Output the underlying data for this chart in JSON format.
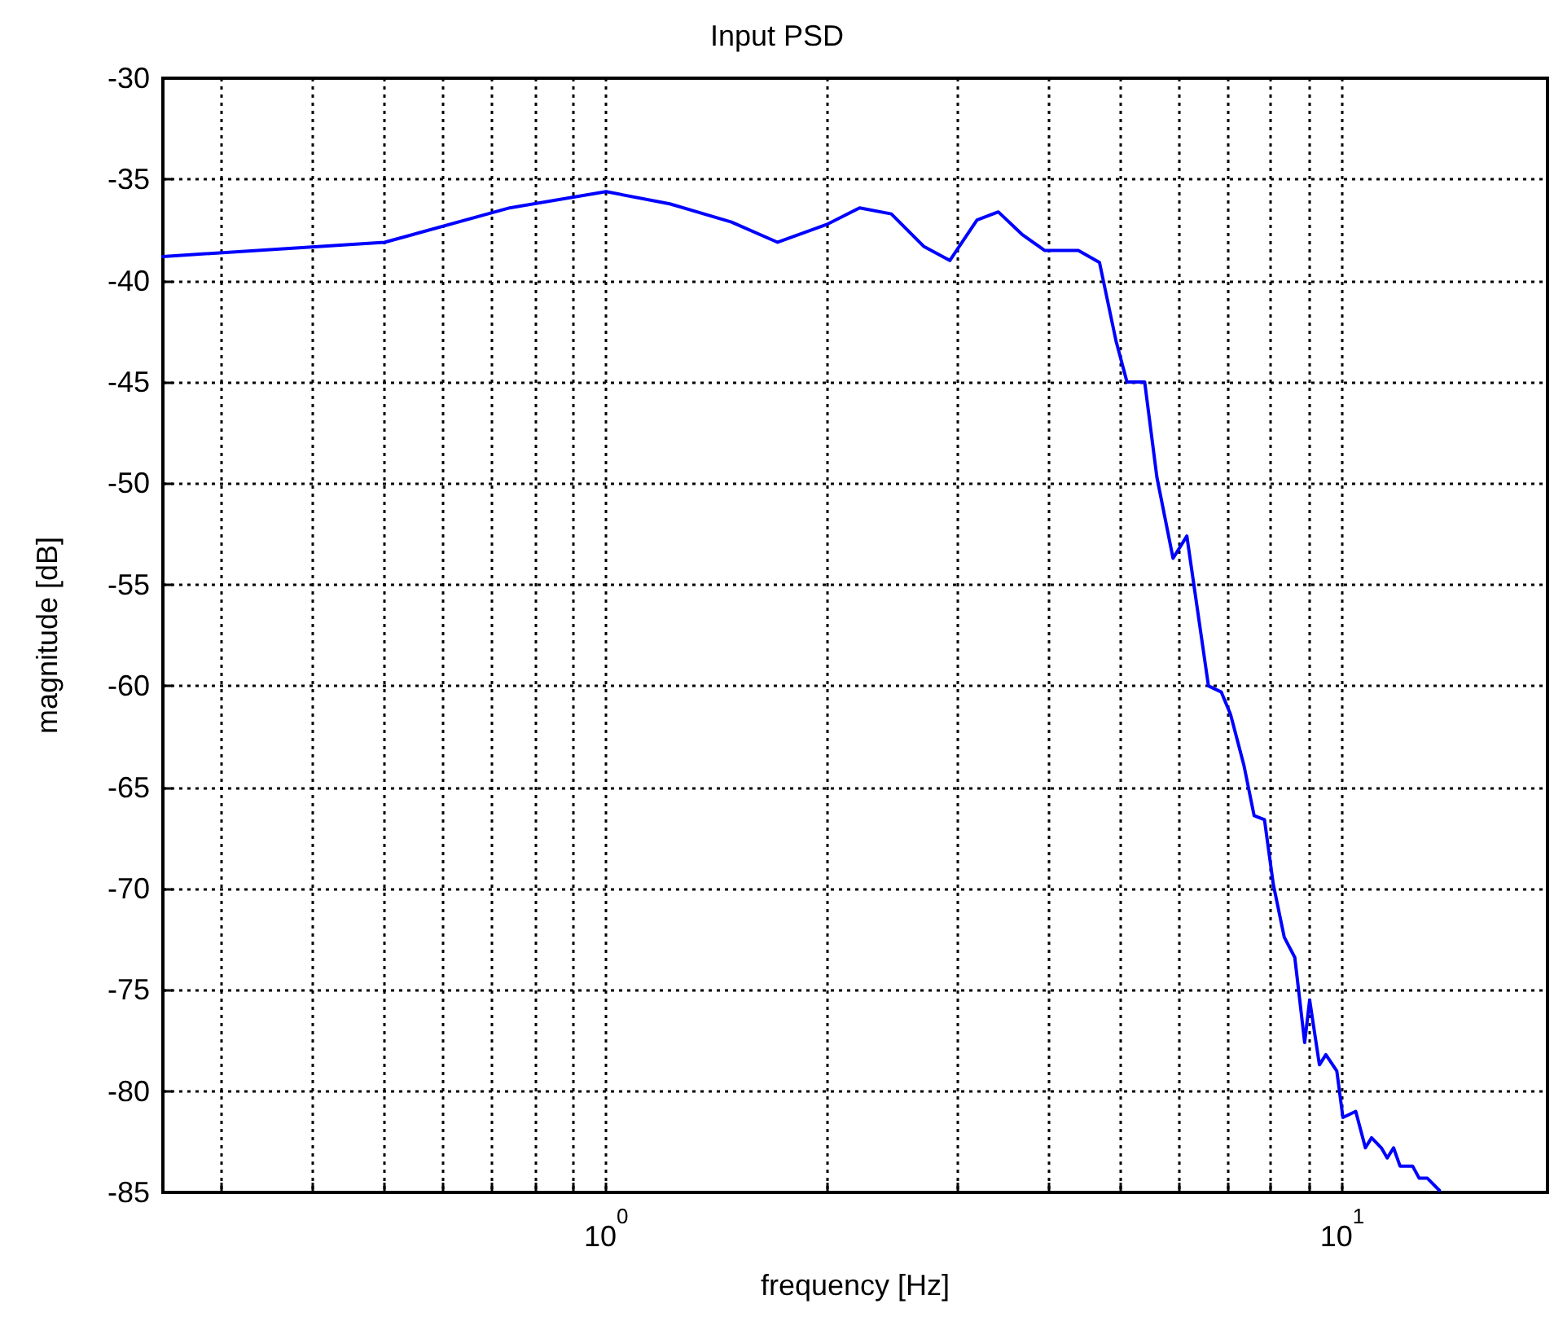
{
  "chart_data": {
    "type": "line",
    "title": "Input PSD",
    "xlabel": "frequency [Hz]",
    "ylabel": "magnitude [dB]",
    "log": "x",
    "grid": true,
    "marker": "none",
    "line_style": "solid",
    "xlim": [
      0.25,
      19
    ],
    "ylim": [
      -85,
      -30
    ],
    "xticks": [
      {
        "value": 0.3,
        "label": null
      },
      {
        "value": 0.4,
        "label": null
      },
      {
        "value": 0.5,
        "label": null
      },
      {
        "value": 0.6,
        "label": null
      },
      {
        "value": 0.7,
        "label": null
      },
      {
        "value": 0.8,
        "label": null
      },
      {
        "value": 0.9,
        "label": null
      },
      {
        "value": 1,
        "label": "10$^{0}$"
      },
      {
        "value": 2,
        "label": null
      },
      {
        "value": 3,
        "label": null
      },
      {
        "value": 4,
        "label": null
      },
      {
        "value": 5,
        "label": null
      },
      {
        "value": 6,
        "label": null
      },
      {
        "value": 7,
        "label": null
      },
      {
        "value": 8,
        "label": null
      },
      {
        "value": 9,
        "label": null
      },
      {
        "value": 10,
        "label": "10$^{1}$"
      }
    ],
    "yticks": [
      -85,
      -80,
      -75,
      -70,
      -65,
      -60,
      -55,
      -50,
      -45,
      -40,
      -35,
      -30
    ],
    "series": [
      {
        "color": "#0000ff",
        "x": [
          0.25,
          0.5,
          0.74,
          1.0,
          1.22,
          1.48,
          1.71,
          2.0,
          2.21,
          2.44,
          2.7,
          2.93,
          3.19,
          3.41,
          3.67,
          3.94,
          4.38,
          4.68,
          4.93,
          5.1,
          5.39,
          5.6,
          5.89,
          6.15,
          6.58,
          6.85,
          7.05,
          7.35,
          7.59,
          7.84,
          8.06,
          8.34,
          8.62,
          8.89,
          9.03,
          9.31,
          9.5,
          9.83,
          10.02,
          10.43,
          10.75,
          10.96,
          11.3,
          11.51,
          11.74,
          11.98,
          12.46,
          12.72,
          13.05,
          13.55
        ],
        "values": [
          -38.8,
          -38.1,
          -36.4,
          -35.6,
          -36.2,
          -37.1,
          -38.1,
          -37.2,
          -36.4,
          -36.7,
          -38.3,
          -39.0,
          -37.0,
          -36.6,
          -37.7,
          -38.5,
          -38.5,
          -39.1,
          -43.0,
          -45.0,
          -45.0,
          -49.7,
          -53.7,
          -52.6,
          -60.0,
          -60.3,
          -61.4,
          -63.9,
          -66.4,
          -66.6,
          -69.8,
          -72.4,
          -73.4,
          -77.6,
          -75.5,
          -78.7,
          -78.2,
          -79.0,
          -81.3,
          -81.0,
          -82.8,
          -82.3,
          -82.8,
          -83.3,
          -82.8,
          -83.7,
          -83.7,
          -84.3,
          -84.3,
          -84.9
        ]
      }
    ]
  }
}
